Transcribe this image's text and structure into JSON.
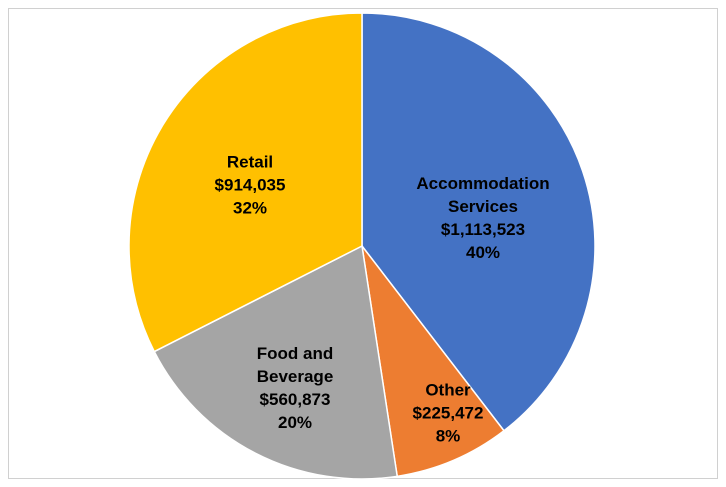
{
  "chart_data": {
    "type": "pie",
    "categories": [
      "Accommodation Services",
      "Other",
      "Food and Beverage",
      "Retail"
    ],
    "values": [
      1113523,
      225472,
      560873,
      914035
    ],
    "value_labels": [
      "$1,113,523",
      "$225,472",
      "$560,873",
      "$914,035"
    ],
    "percent_labels": [
      "40%",
      "8%",
      "20%",
      "32%"
    ],
    "colors": [
      "#4472c4",
      "#ed7d31",
      "#a5a5a5",
      "#ffc000"
    ]
  }
}
